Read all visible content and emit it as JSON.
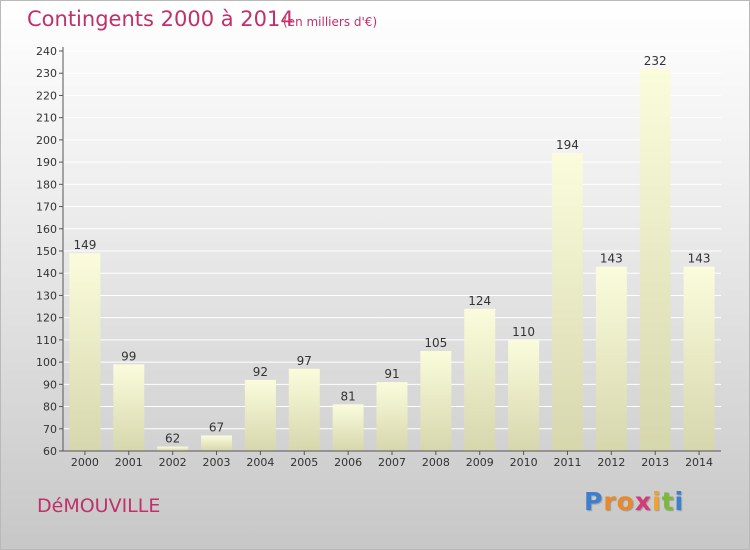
{
  "header": {
    "title": "Contingents 2000 à 2014",
    "subtitle": "(en milliers d'€)"
  },
  "footer": {
    "commune": "DéMOUVILLE",
    "logo_letters": [
      "P",
      "r",
      "o",
      "x",
      "i",
      "t",
      "i"
    ],
    "logo_colors": [
      "#3b7fd0",
      "#e8892a",
      "#e8892a",
      "#d23a7a",
      "#f0a22a",
      "#7cb83a",
      "#3b7fd0"
    ]
  },
  "colors": {
    "title": "#c0306a",
    "bar_light": "#fbfcdc",
    "bar_dark": "#d6d7ad",
    "axis": "#555555",
    "grid": "#ffffff"
  },
  "chart_data": {
    "type": "bar",
    "title": "Contingents 2000 à 2014",
    "subtitle": "(en milliers d'€)",
    "categories": [
      "2000",
      "2001",
      "2002",
      "2003",
      "2004",
      "2005",
      "2006",
      "2007",
      "2008",
      "2009",
      "2010",
      "2011",
      "2012",
      "2013",
      "2014"
    ],
    "values": [
      149,
      99,
      62,
      67,
      92,
      97,
      81,
      91,
      105,
      124,
      110,
      194,
      143,
      232,
      143
    ],
    "ylim": [
      60,
      240
    ],
    "yticks": [
      60,
      70,
      80,
      90,
      100,
      110,
      120,
      130,
      140,
      150,
      160,
      170,
      180,
      190,
      200,
      210,
      220,
      230,
      240
    ],
    "grid": true,
    "legend": "none"
  }
}
